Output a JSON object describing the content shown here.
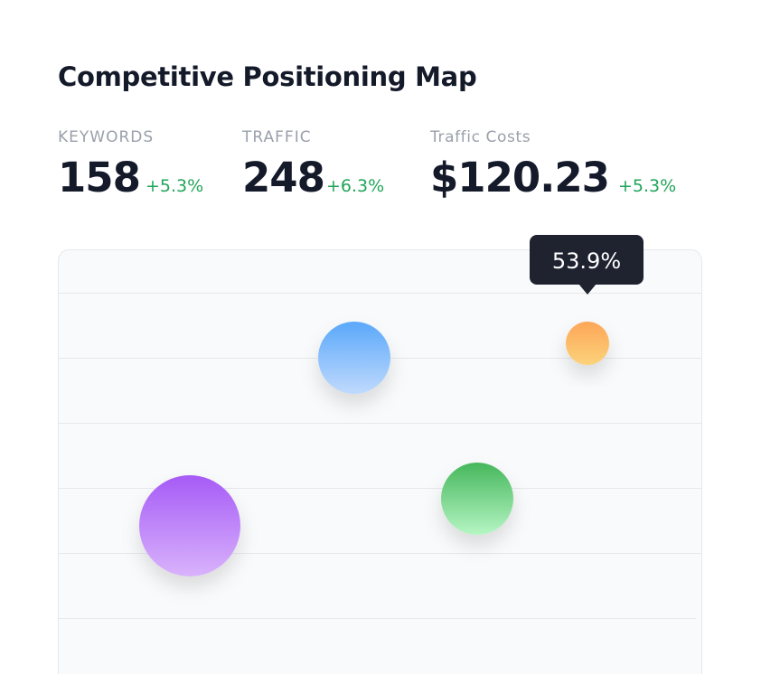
{
  "header": {
    "title": "Competitive Positioning Map"
  },
  "stats": [
    {
      "label": "KEYWORDS",
      "value": "158",
      "change": "+5.3%"
    },
    {
      "label": "TRAFFIC",
      "value": "248",
      "change": "+6.3%"
    },
    {
      "label": "Traffic Costs",
      "value": "$120.23",
      "change": "+5.3%"
    }
  ],
  "tooltip": "53.9%"
}
